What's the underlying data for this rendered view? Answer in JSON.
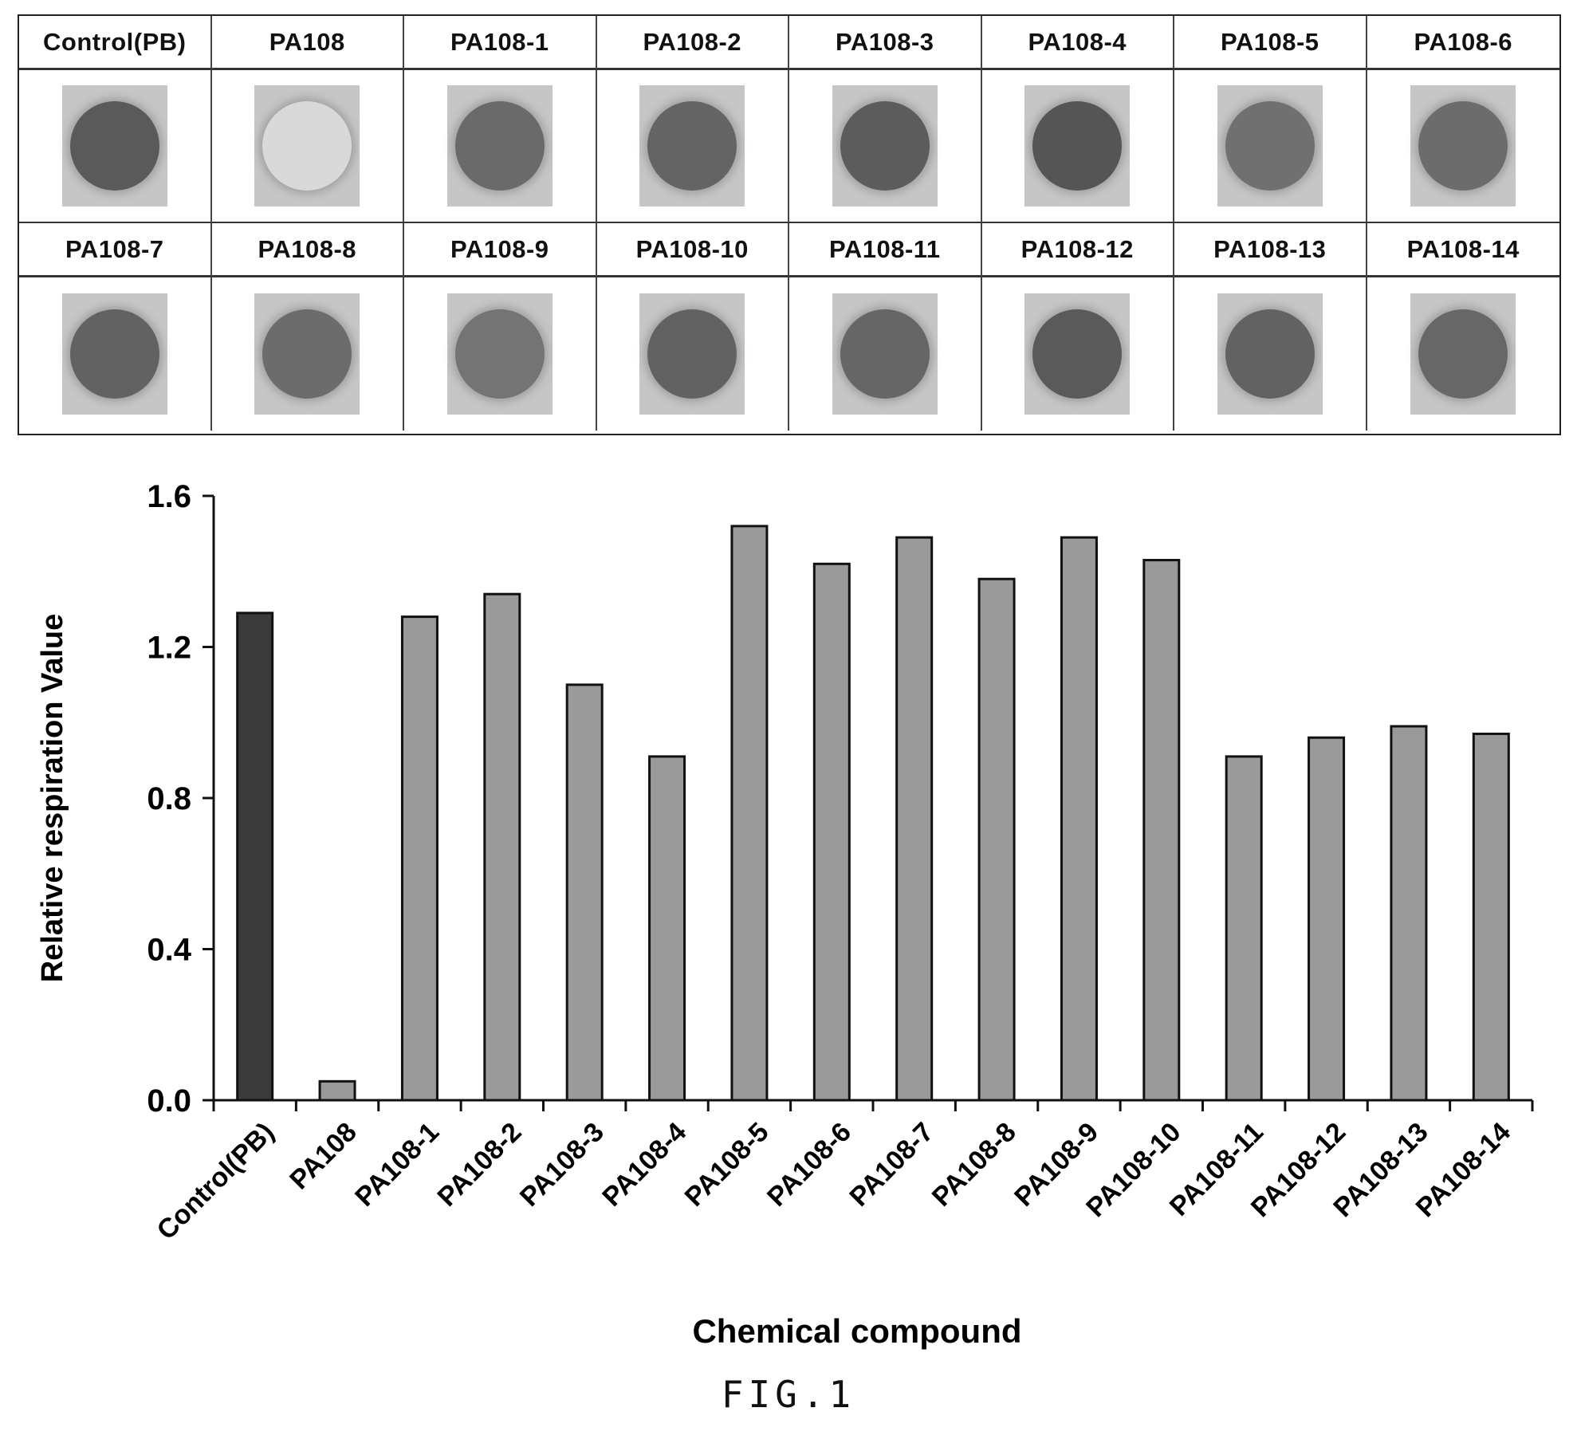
{
  "plate": {
    "row1_labels": [
      "Control(PB)",
      "PA108",
      "PA108-1",
      "PA108-2",
      "PA108-3",
      "PA108-4",
      "PA108-5",
      "PA108-6"
    ],
    "row2_labels": [
      "PA108-7",
      "PA108-8",
      "PA108-9",
      "PA108-10",
      "PA108-11",
      "PA108-12",
      "PA108-13",
      "PA108-14"
    ],
    "row1_well_colors": [
      "#5a5a5a",
      "#d9d9d9",
      "#6a6a6a",
      "#646464",
      "#5c5c5c",
      "#555555",
      "#707070",
      "#6c6c6c"
    ],
    "row2_well_colors": [
      "#626262",
      "#6c6c6c",
      "#747474",
      "#626262",
      "#666666",
      "#5a5a5a",
      "#626262",
      "#676767"
    ]
  },
  "chart_data": {
    "type": "bar",
    "categories": [
      "Control(PB)",
      "PA108",
      "PA108-1",
      "PA108-2",
      "PA108-3",
      "PA108-4",
      "PA108-5",
      "PA108-6",
      "PA108-7",
      "PA108-8",
      "PA108-9",
      "PA108-10",
      "PA108-11",
      "PA108-12",
      "PA108-13",
      "PA108-14"
    ],
    "values": [
      1.29,
      0.05,
      1.28,
      1.34,
      1.1,
      0.91,
      1.52,
      1.42,
      1.49,
      1.38,
      1.49,
      1.43,
      0.91,
      0.96,
      0.99,
      0.97
    ],
    "xlabel": "Chemical compound",
    "ylabel": "Relative respiration Value",
    "ylim": [
      0,
      1.6
    ],
    "yticks": [
      "0.0",
      "0.4",
      "0.8",
      "1.2",
      "1.6"
    ],
    "grid": false,
    "legend": "none",
    "colors": {
      "control": "#3a3a3a",
      "default": "#9a9a9a"
    }
  },
  "caption": "FIG.1"
}
